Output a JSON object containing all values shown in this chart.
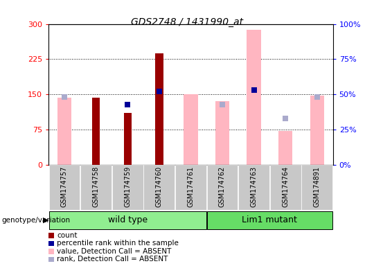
{
  "title": "GDS2748 / 1431990_at",
  "samples": [
    "GSM174757",
    "GSM174758",
    "GSM174759",
    "GSM174760",
    "GSM174761",
    "GSM174762",
    "GSM174763",
    "GSM174764",
    "GSM174891"
  ],
  "count_values": [
    null,
    143,
    110,
    237,
    null,
    null,
    null,
    null,
    null
  ],
  "rank_values": [
    null,
    null,
    43,
    52,
    null,
    null,
    53,
    null,
    null
  ],
  "absent_value": [
    143,
    null,
    null,
    null,
    150,
    135,
    287,
    73,
    147
  ],
  "absent_rank": [
    48,
    null,
    null,
    null,
    null,
    43,
    53,
    33,
    48
  ],
  "groups": [
    {
      "label": "wild type",
      "start": 0,
      "end": 5,
      "color": "#90EE90"
    },
    {
      "label": "Lim1 mutant",
      "start": 5,
      "end": 9,
      "color": "#66DD66"
    }
  ],
  "ylim_left": [
    0,
    300
  ],
  "ylim_right": [
    0,
    100
  ],
  "yticks_left": [
    0,
    75,
    150,
    225,
    300
  ],
  "yticks_right": [
    0,
    25,
    50,
    75,
    100
  ],
  "count_color": "#990000",
  "rank_color": "#000099",
  "absent_value_color": "#FFB6C1",
  "absent_rank_color": "#AAAACC",
  "genotype_label": "genotype/variation",
  "legend_items": [
    {
      "color": "#990000",
      "label": "count"
    },
    {
      "color": "#000099",
      "label": "percentile rank within the sample"
    },
    {
      "color": "#FFB6C1",
      "label": "value, Detection Call = ABSENT"
    },
    {
      "color": "#AAAACC",
      "label": "rank, Detection Call = ABSENT"
    }
  ]
}
